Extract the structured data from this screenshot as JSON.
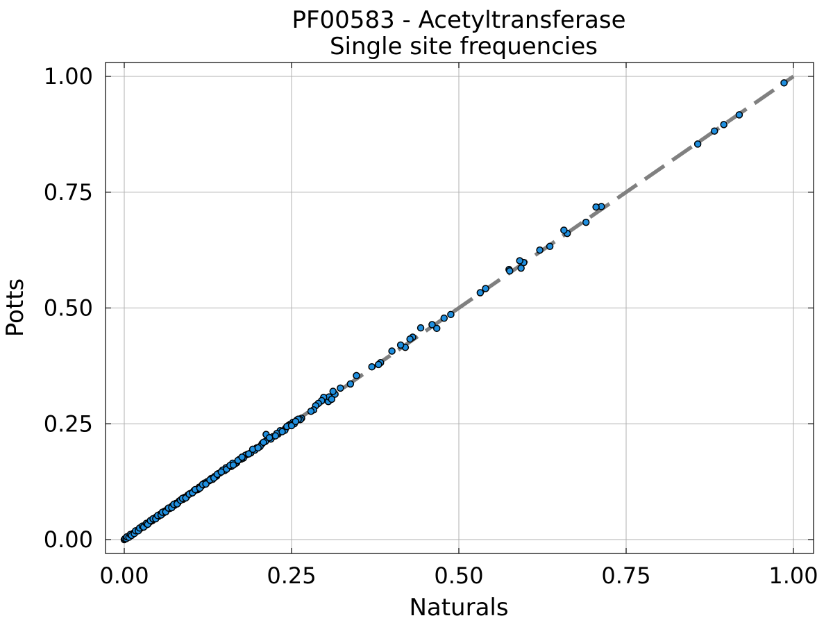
{
  "chart_data": {
    "type": "scatter",
    "title": "PF00583 - Acetyltransferase",
    "subtitle": "Single site frequencies",
    "xlabel": "Naturals",
    "ylabel": "Potts",
    "xlim": [
      0,
      1
    ],
    "ylim": [
      0,
      1
    ],
    "xticks": [
      "0.00",
      "0.25",
      "0.50",
      "0.75",
      "1.00"
    ],
    "yticks": [
      "0.00",
      "0.25",
      "0.50",
      "0.75",
      "1.00"
    ],
    "xtick_values": [
      0,
      0.25,
      0.5,
      0.75,
      1.0
    ],
    "ytick_values": [
      0,
      0.25,
      0.5,
      0.75,
      1.0
    ],
    "grid": true,
    "legend": "none",
    "point_color": "#1f8fdf",
    "point_edge_color": "#000000",
    "reference_line": {
      "from": [
        0,
        0
      ],
      "to": [
        1,
        1
      ],
      "color": "#808080",
      "style": "dashed"
    },
    "points": [
      [
        0.986,
        0.986
      ],
      [
        0.919,
        0.917
      ],
      [
        0.896,
        0.896
      ],
      [
        0.882,
        0.882
      ],
      [
        0.857,
        0.854
      ],
      [
        0.713,
        0.719
      ],
      [
        0.705,
        0.718
      ],
      [
        0.69,
        0.685
      ],
      [
        0.662,
        0.661
      ],
      [
        0.657,
        0.668
      ],
      [
        0.636,
        0.633
      ],
      [
        0.621,
        0.625
      ],
      [
        0.597,
        0.598
      ],
      [
        0.591,
        0.602
      ],
      [
        0.593,
        0.586
      ],
      [
        0.575,
        0.583
      ],
      [
        0.576,
        0.58
      ],
      [
        0.54,
        0.542
      ],
      [
        0.532,
        0.533
      ],
      [
        0.488,
        0.486
      ],
      [
        0.478,
        0.478
      ],
      [
        0.467,
        0.456
      ],
      [
        0.46,
        0.464
      ],
      [
        0.443,
        0.457
      ],
      [
        0.431,
        0.437
      ],
      [
        0.427,
        0.433
      ],
      [
        0.42,
        0.415
      ],
      [
        0.413,
        0.42
      ],
      [
        0.4,
        0.407
      ],
      [
        0.383,
        0.382
      ],
      [
        0.38,
        0.378
      ],
      [
        0.37,
        0.373
      ],
      [
        0.347,
        0.354
      ],
      [
        0.338,
        0.336
      ],
      [
        0.323,
        0.327
      ],
      [
        0.315,
        0.314
      ],
      [
        0.312,
        0.32
      ],
      [
        0.305,
        0.298
      ],
      [
        0.306,
        0.308
      ],
      [
        0.298,
        0.307
      ],
      [
        0.295,
        0.3
      ],
      [
        0.29,
        0.294
      ],
      [
        0.286,
        0.289
      ],
      [
        0.283,
        0.28
      ],
      [
        0.279,
        0.277
      ],
      [
        0.265,
        0.262
      ],
      [
        0.263,
        0.259
      ],
      [
        0.258,
        0.258
      ],
      [
        0.26,
        0.26
      ],
      [
        0.252,
        0.253
      ],
      [
        0.254,
        0.25
      ],
      [
        0.248,
        0.249
      ],
      [
        0.245,
        0.246
      ],
      [
        0.241,
        0.24
      ],
      [
        0.24,
        0.236
      ],
      [
        0.233,
        0.235
      ],
      [
        0.23,
        0.228
      ],
      [
        0.228,
        0.229
      ],
      [
        0.222,
        0.222
      ],
      [
        0.219,
        0.217
      ],
      [
        0.215,
        0.219
      ],
      [
        0.212,
        0.227
      ],
      [
        0.211,
        0.212
      ],
      [
        0.206,
        0.207
      ],
      [
        0.203,
        0.201
      ],
      [
        0.198,
        0.198
      ],
      [
        0.195,
        0.193
      ],
      [
        0.189,
        0.187
      ],
      [
        0.184,
        0.184
      ],
      [
        0.181,
        0.182
      ],
      [
        0.178,
        0.176
      ],
      [
        0.175,
        0.174
      ],
      [
        0.172,
        0.173
      ],
      [
        0.168,
        0.166
      ],
      [
        0.166,
        0.164
      ],
      [
        0.162,
        0.165
      ],
      [
        0.16,
        0.158
      ],
      [
        0.156,
        0.157
      ],
      [
        0.152,
        0.155
      ],
      [
        0.15,
        0.149
      ],
      [
        0.147,
        0.15
      ],
      [
        0.143,
        0.144
      ],
      [
        0.14,
        0.142
      ],
      [
        0.138,
        0.137
      ],
      [
        0.135,
        0.136
      ],
      [
        0.132,
        0.13
      ],
      [
        0.13,
        0.132
      ],
      [
        0.127,
        0.127
      ],
      [
        0.124,
        0.125
      ],
      [
        0.12,
        0.122
      ],
      [
        0.118,
        0.118
      ],
      [
        0.115,
        0.115
      ],
      [
        0.112,
        0.113
      ],
      [
        0.11,
        0.108
      ],
      [
        0.107,
        0.107
      ],
      [
        0.104,
        0.105
      ],
      [
        0.1,
        0.1
      ],
      [
        0.098,
        0.099
      ],
      [
        0.095,
        0.096
      ],
      [
        0.093,
        0.092
      ],
      [
        0.09,
        0.091
      ],
      [
        0.088,
        0.087
      ],
      [
        0.085,
        0.086
      ],
      [
        0.082,
        0.083
      ],
      [
        0.08,
        0.079
      ],
      [
        0.077,
        0.078
      ],
      [
        0.075,
        0.074
      ],
      [
        0.072,
        0.073
      ],
      [
        0.07,
        0.07
      ],
      [
        0.068,
        0.067
      ],
      [
        0.065,
        0.066
      ],
      [
        0.063,
        0.063
      ],
      [
        0.06,
        0.061
      ],
      [
        0.058,
        0.057
      ],
      [
        0.056,
        0.055
      ],
      [
        0.053,
        0.054
      ],
      [
        0.051,
        0.05
      ],
      [
        0.048,
        0.049
      ],
      [
        0.046,
        0.046
      ],
      [
        0.044,
        0.044
      ],
      [
        0.042,
        0.041
      ],
      [
        0.04,
        0.04
      ],
      [
        0.038,
        0.038
      ],
      [
        0.036,
        0.035
      ],
      [
        0.034,
        0.034
      ],
      [
        0.032,
        0.031
      ],
      [
        0.03,
        0.03
      ],
      [
        0.028,
        0.027
      ],
      [
        0.026,
        0.026
      ],
      [
        0.024,
        0.024
      ],
      [
        0.022,
        0.022
      ],
      [
        0.02,
        0.02
      ],
      [
        0.018,
        0.018
      ],
      [
        0.016,
        0.016
      ],
      [
        0.014,
        0.014
      ],
      [
        0.012,
        0.012
      ],
      [
        0.01,
        0.01
      ],
      [
        0.008,
        0.008
      ],
      [
        0.006,
        0.006
      ],
      [
        0.005,
        0.005
      ],
      [
        0.004,
        0.004
      ],
      [
        0.003,
        0.003
      ],
      [
        0.002,
        0.002
      ],
      [
        0.001,
        0.001
      ],
      [
        0.0,
        0.0
      ],
      [
        0.001,
        0.002
      ],
      [
        0.003,
        0.002
      ],
      [
        0.004,
        0.006
      ],
      [
        0.007,
        0.005
      ],
      [
        0.009,
        0.011
      ],
      [
        0.011,
        0.009
      ],
      [
        0.015,
        0.013
      ],
      [
        0.017,
        0.019
      ],
      [
        0.021,
        0.019
      ],
      [
        0.023,
        0.025
      ],
      [
        0.027,
        0.029
      ],
      [
        0.029,
        0.027
      ],
      [
        0.033,
        0.035
      ],
      [
        0.035,
        0.033
      ],
      [
        0.039,
        0.041
      ],
      [
        0.043,
        0.045
      ],
      [
        0.047,
        0.045
      ],
      [
        0.05,
        0.052
      ],
      [
        0.055,
        0.053
      ],
      [
        0.057,
        0.059
      ],
      [
        0.062,
        0.06
      ],
      [
        0.066,
        0.068
      ],
      [
        0.071,
        0.069
      ],
      [
        0.074,
        0.076
      ],
      [
        0.079,
        0.077
      ],
      [
        0.084,
        0.085
      ],
      [
        0.087,
        0.089
      ],
      [
        0.092,
        0.09
      ],
      [
        0.097,
        0.098
      ],
      [
        0.102,
        0.101
      ],
      [
        0.106,
        0.108
      ],
      [
        0.113,
        0.111
      ],
      [
        0.117,
        0.119
      ],
      [
        0.122,
        0.12
      ],
      [
        0.128,
        0.129
      ],
      [
        0.134,
        0.133
      ],
      [
        0.139,
        0.141
      ],
      [
        0.145,
        0.146
      ],
      [
        0.153,
        0.152
      ],
      [
        0.158,
        0.16
      ],
      [
        0.163,
        0.161
      ],
      [
        0.17,
        0.171
      ],
      [
        0.176,
        0.178
      ],
      [
        0.186,
        0.185
      ],
      [
        0.192,
        0.195
      ],
      [
        0.2,
        0.198
      ],
      [
        0.208,
        0.21
      ],
      [
        0.217,
        0.22
      ],
      [
        0.226,
        0.224
      ],
      [
        0.236,
        0.233
      ],
      [
        0.243,
        0.244
      ],
      [
        0.25,
        0.246
      ],
      [
        0.256,
        0.255
      ],
      [
        0.31,
        0.303
      ]
    ]
  }
}
